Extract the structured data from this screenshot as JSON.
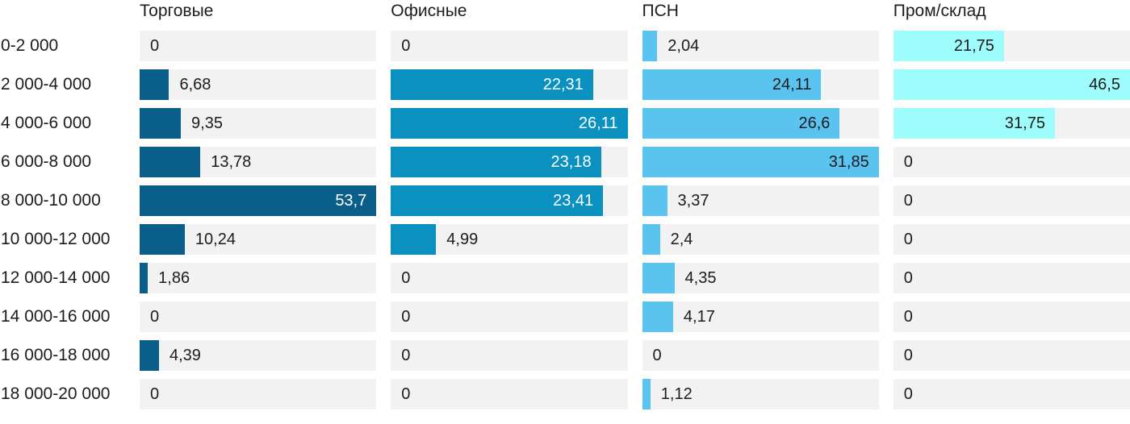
{
  "chart_data": {
    "type": "bar",
    "orientation": "horizontal",
    "title": "",
    "xlabel": "",
    "ylabel": "",
    "legend_position": "column-headers-top",
    "grid": false,
    "decimal_separator": ",",
    "scaling": "each series scaled independently so its max value fills the full track width",
    "categories": [
      "0-2 000",
      "2 000-4 000",
      "4 000-6 000",
      "6 000-8 000",
      "8 000-10 000",
      "10 000-12 000",
      "12 000-14 000",
      "14 000-16 000",
      "16 000-18 000",
      "18 000-20 000"
    ],
    "series": [
      {
        "name": "Торговые",
        "color": "#095f89",
        "label_color_inside": "#ffffff",
        "values": [
          0,
          6.68,
          9.35,
          13.78,
          53.7,
          10.24,
          1.86,
          0,
          4.39,
          0
        ]
      },
      {
        "name": "Офисные",
        "color": "#0b91bf",
        "label_color_inside": "#ffffff",
        "values": [
          0,
          22.31,
          26.11,
          23.18,
          23.41,
          4.99,
          0,
          0,
          0,
          0
        ]
      },
      {
        "name": "ПСН",
        "color": "#5bc3f0",
        "label_color_inside": "#1c1c1c",
        "values": [
          2.04,
          24.11,
          26.6,
          31.85,
          3.37,
          2.4,
          4.35,
          4.17,
          0,
          1.12
        ]
      },
      {
        "name": "Пром/склад",
        "color": "#9ffcfc",
        "label_color_inside": "#1c1c1c",
        "values": [
          21.75,
          46.5,
          31.75,
          0,
          0,
          0,
          0,
          0,
          0,
          0
        ]
      }
    ],
    "track_color": "#f2f2f2",
    "text_color": "#1c1c1c"
  }
}
